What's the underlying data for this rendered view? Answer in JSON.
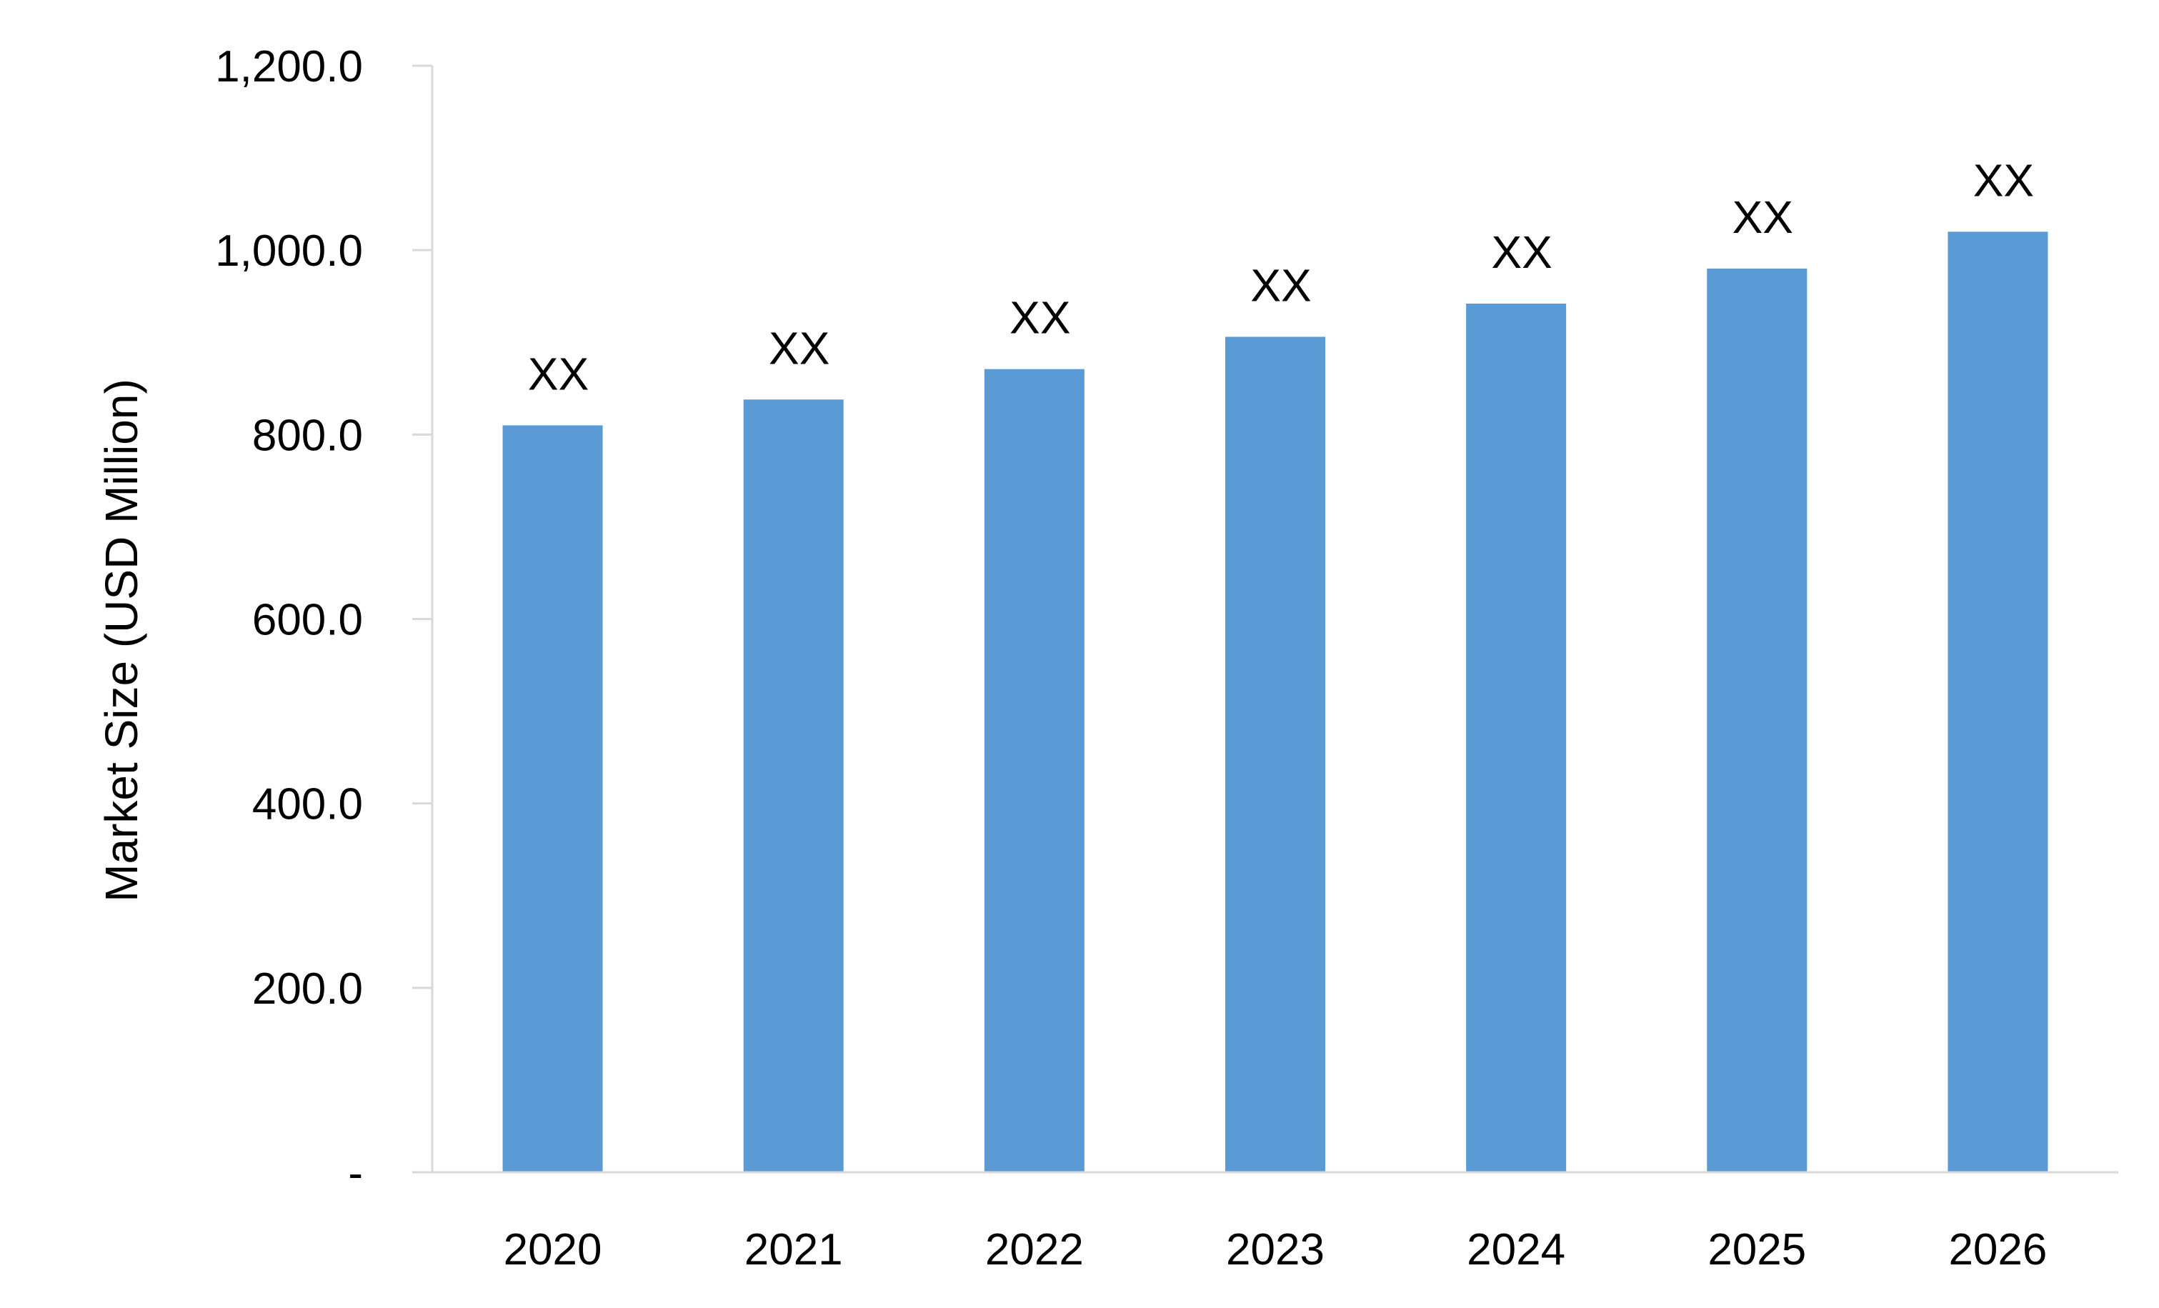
{
  "chart_data": {
    "type": "bar",
    "title": "",
    "xlabel": "",
    "ylabel": "Market Size (USD Million)",
    "categories": [
      "2020",
      "2021",
      "2022",
      "2023",
      "2024",
      "2025",
      "2026"
    ],
    "series": [
      {
        "values": [
          810,
          838,
          871,
          906,
          942,
          980,
          1020
        ],
        "data_labels": [
          "XX",
          "XX",
          "XX",
          "XX",
          "XX",
          "XX",
          "XX"
        ],
        "color": "#5b9bd5"
      }
    ],
    "ylim": [
      0,
      1200
    ],
    "yticks": [
      0,
      200,
      400,
      600,
      800,
      1000,
      1200
    ],
    "ytick_labels": [
      "-",
      "200.0",
      "400.0",
      "600.0",
      "800.0",
      "1,000.0",
      "1,200.0"
    ],
    "grid": false,
    "legend": "none"
  }
}
